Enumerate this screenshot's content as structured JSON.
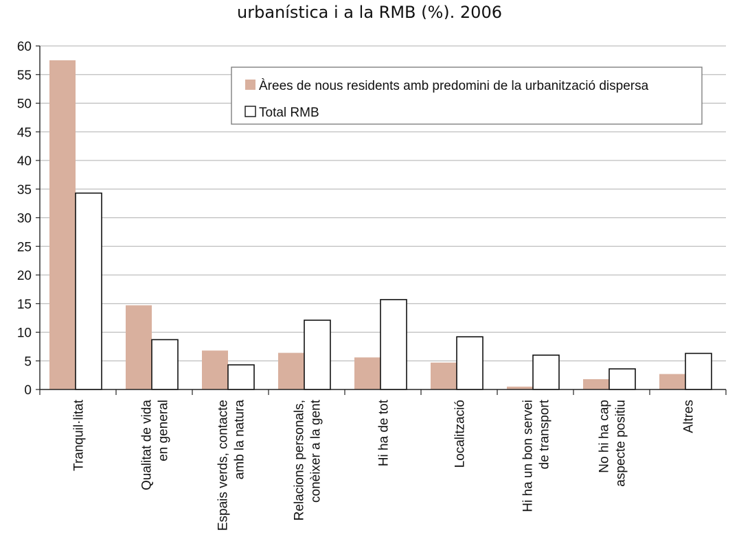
{
  "chart_data": {
    "type": "bar",
    "title": "urbanística i a la RMB (%). 2006",
    "categories": [
      [
        "Tranquil·litat"
      ],
      [
        "Qualitat de vida",
        "en general"
      ],
      [
        "Espais verds, contacte",
        "amb la natura"
      ],
      [
        "Relacions personals,",
        "conèixer a la gent"
      ],
      [
        "Hi ha de tot"
      ],
      [
        "Localització"
      ],
      [
        "Hi ha un bon servei",
        "de transport"
      ],
      [
        "No hi ha cap",
        "aspecte positiu"
      ],
      [
        "Altres"
      ]
    ],
    "series": [
      {
        "name": "Àrees de nous residents amb predomini de la urbanització dispersa",
        "color": "#d9b09e",
        "values": [
          57.5,
          14.7,
          6.8,
          6.4,
          5.6,
          4.7,
          0.5,
          1.8,
          2.7
        ]
      },
      {
        "name": "Total RMB",
        "color": "#ffffff",
        "values": [
          34.3,
          8.7,
          4.3,
          12.1,
          15.7,
          9.2,
          6.0,
          3.6,
          6.3
        ]
      }
    ],
    "ylim": [
      0,
      60
    ],
    "yticks": [
      0,
      5,
      10,
      15,
      20,
      25,
      30,
      35,
      40,
      45,
      50,
      55,
      60
    ],
    "grid": true,
    "legend_position": "top-right"
  }
}
